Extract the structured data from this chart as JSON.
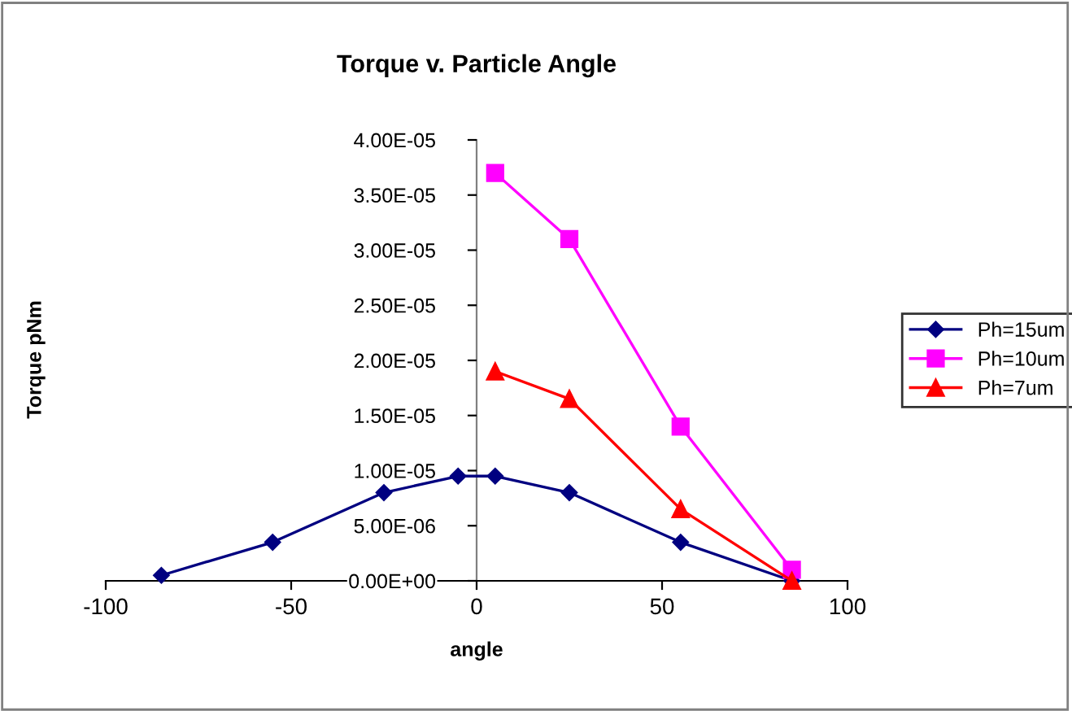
{
  "chart_data": {
    "type": "line",
    "title": "Torque v. Particle Angle",
    "xlabel": "angle",
    "ylabel": "Torque pNm",
    "xlim": [
      -100,
      100
    ],
    "xticks": [
      -100,
      -50,
      0,
      50,
      100
    ],
    "ylim": [
      0,
      4e-05
    ],
    "yticks": [
      {
        "value": 0,
        "label": "0.00E+00"
      },
      {
        "value": 5e-06,
        "label": "5.00E-06"
      },
      {
        "value": 1e-05,
        "label": "1.00E-05"
      },
      {
        "value": 1.5e-05,
        "label": "1.50E-05"
      },
      {
        "value": 2e-05,
        "label": "2.00E-05"
      },
      {
        "value": 2.5e-05,
        "label": "2.50E-05"
      },
      {
        "value": 3e-05,
        "label": "3.00E-05"
      },
      {
        "value": 3.5e-05,
        "label": "3.50E-05"
      },
      {
        "value": 4e-05,
        "label": "4.00E-05"
      }
    ],
    "grid": false,
    "legend": "right",
    "line_style": "solid",
    "series": [
      {
        "name": "Ph=15um",
        "color": "#000080",
        "marker": "diamond",
        "x": [
          -85,
          -55,
          -25,
          -5,
          5,
          25,
          55,
          85
        ],
        "values": [
          5e-07,
          3.5e-06,
          8e-06,
          9.5e-06,
          9.5e-06,
          8e-06,
          3.5e-06,
          0
        ]
      },
      {
        "name": "Ph=10um",
        "color": "#ff00ff",
        "marker": "square",
        "x": [
          5,
          25,
          55,
          85
        ],
        "values": [
          3.7e-05,
          3.1e-05,
          1.4e-05,
          1e-06
        ]
      },
      {
        "name": "Ph=7um",
        "color": "#ff0000",
        "marker": "triangle",
        "x": [
          5,
          25,
          55,
          85
        ],
        "values": [
          1.9e-05,
          1.65e-05,
          6.5e-06,
          0
        ]
      }
    ]
  }
}
